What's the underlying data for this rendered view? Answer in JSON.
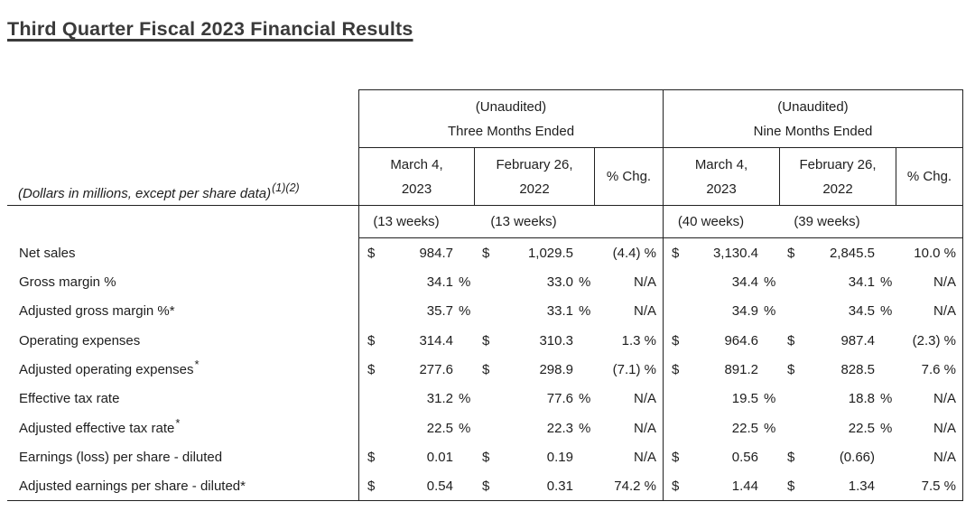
{
  "title": "Third Quarter Fiscal 2023 Financial Results",
  "table": {
    "note": "(Dollars in millions, except per share data)",
    "note_sup": "(1)(2)",
    "groups": [
      {
        "unaudited_label": "(Unaudited)",
        "period_label": "Three Months Ended",
        "col1": {
          "line1": "March 4,",
          "line2": "2023",
          "weeks": "(13 weeks)"
        },
        "col2": {
          "line1": "February 26,",
          "line2": "2022",
          "weeks": "(13 weeks)"
        },
        "chg_label": "% Chg."
      },
      {
        "unaudited_label": "(Unaudited)",
        "period_label": "Nine Months Ended",
        "col1": {
          "line1": "March 4,",
          "line2": "2023",
          "weeks": "(40 weeks)"
        },
        "col2": {
          "line1": "February 26,",
          "line2": "2022",
          "weeks": "(39 weeks)"
        },
        "chg_label": "% Chg."
      }
    ],
    "rows": [
      {
        "label": "Net sales",
        "sup": "",
        "cells": [
          {
            "p": "$",
            "v": "984.7",
            "s": ""
          },
          {
            "p": "$",
            "v": "1,029.5",
            "s": ""
          },
          {
            "chg": "(4.4) %"
          },
          {
            "p": "$",
            "v": "3,130.4",
            "s": ""
          },
          {
            "p": "$",
            "v": "2,845.5",
            "s": ""
          },
          {
            "chg": "10.0 %"
          }
        ]
      },
      {
        "label": "Gross margin %",
        "sup": "",
        "cells": [
          {
            "p": "",
            "v": "34.1",
            "s": "%"
          },
          {
            "p": "",
            "v": "33.0",
            "s": "%"
          },
          {
            "chg": "N/A"
          },
          {
            "p": "",
            "v": "34.4",
            "s": "%"
          },
          {
            "p": "",
            "v": "34.1",
            "s": "%"
          },
          {
            "chg": "N/A"
          }
        ]
      },
      {
        "label": "Adjusted gross margin %*",
        "sup": "",
        "cells": [
          {
            "p": "",
            "v": "35.7",
            "s": "%"
          },
          {
            "p": "",
            "v": "33.1",
            "s": "%"
          },
          {
            "chg": "N/A"
          },
          {
            "p": "",
            "v": "34.9",
            "s": "%"
          },
          {
            "p": "",
            "v": "34.5",
            "s": "%"
          },
          {
            "chg": "N/A"
          }
        ]
      },
      {
        "label": "Operating expenses",
        "sup": "",
        "cells": [
          {
            "p": "$",
            "v": "314.4",
            "s": ""
          },
          {
            "p": "$",
            "v": "310.3",
            "s": ""
          },
          {
            "chg": "1.3 %"
          },
          {
            "p": "$",
            "v": "964.6",
            "s": ""
          },
          {
            "p": "$",
            "v": "987.4",
            "s": ""
          },
          {
            "chg": "(2.3) %"
          }
        ]
      },
      {
        "label": "Adjusted operating expenses",
        "sup": "*",
        "cells": [
          {
            "p": "$",
            "v": "277.6",
            "s": ""
          },
          {
            "p": "$",
            "v": "298.9",
            "s": ""
          },
          {
            "chg": "(7.1) %"
          },
          {
            "p": "$",
            "v": "891.2",
            "s": ""
          },
          {
            "p": "$",
            "v": "828.5",
            "s": ""
          },
          {
            "chg": "7.6 %"
          }
        ]
      },
      {
        "label": "Effective tax rate",
        "sup": "",
        "cells": [
          {
            "p": "",
            "v": "31.2",
            "s": "%"
          },
          {
            "p": "",
            "v": "77.6",
            "s": "%"
          },
          {
            "chg": "N/A"
          },
          {
            "p": "",
            "v": "19.5",
            "s": "%"
          },
          {
            "p": "",
            "v": "18.8",
            "s": "%"
          },
          {
            "chg": "N/A"
          }
        ]
      },
      {
        "label": "Adjusted effective tax rate",
        "sup": "*",
        "cells": [
          {
            "p": "",
            "v": "22.5",
            "s": "%"
          },
          {
            "p": "",
            "v": "22.3",
            "s": "%"
          },
          {
            "chg": "N/A"
          },
          {
            "p": "",
            "v": "22.5",
            "s": "%"
          },
          {
            "p": "",
            "v": "22.5",
            "s": "%"
          },
          {
            "chg": "N/A"
          }
        ]
      },
      {
        "label": "Earnings (loss) per share - diluted",
        "sup": "",
        "cells": [
          {
            "p": "$",
            "v": "0.01",
            "s": ""
          },
          {
            "p": "$",
            "v": "0.19",
            "s": ""
          },
          {
            "chg": "N/A"
          },
          {
            "p": "$",
            "v": "0.56",
            "s": ""
          },
          {
            "p": "$",
            "v": "(0.66)",
            "s": ""
          },
          {
            "chg": "N/A"
          }
        ]
      },
      {
        "label": "Adjusted earnings per share - diluted*",
        "sup": "",
        "cells": [
          {
            "p": "$",
            "v": "0.54",
            "s": ""
          },
          {
            "p": "$",
            "v": "0.31",
            "s": ""
          },
          {
            "chg": "74.2 %"
          },
          {
            "p": "$",
            "v": "1.44",
            "s": ""
          },
          {
            "p": "$",
            "v": "1.34",
            "s": ""
          },
          {
            "chg": "7.5 %"
          }
        ]
      }
    ]
  }
}
